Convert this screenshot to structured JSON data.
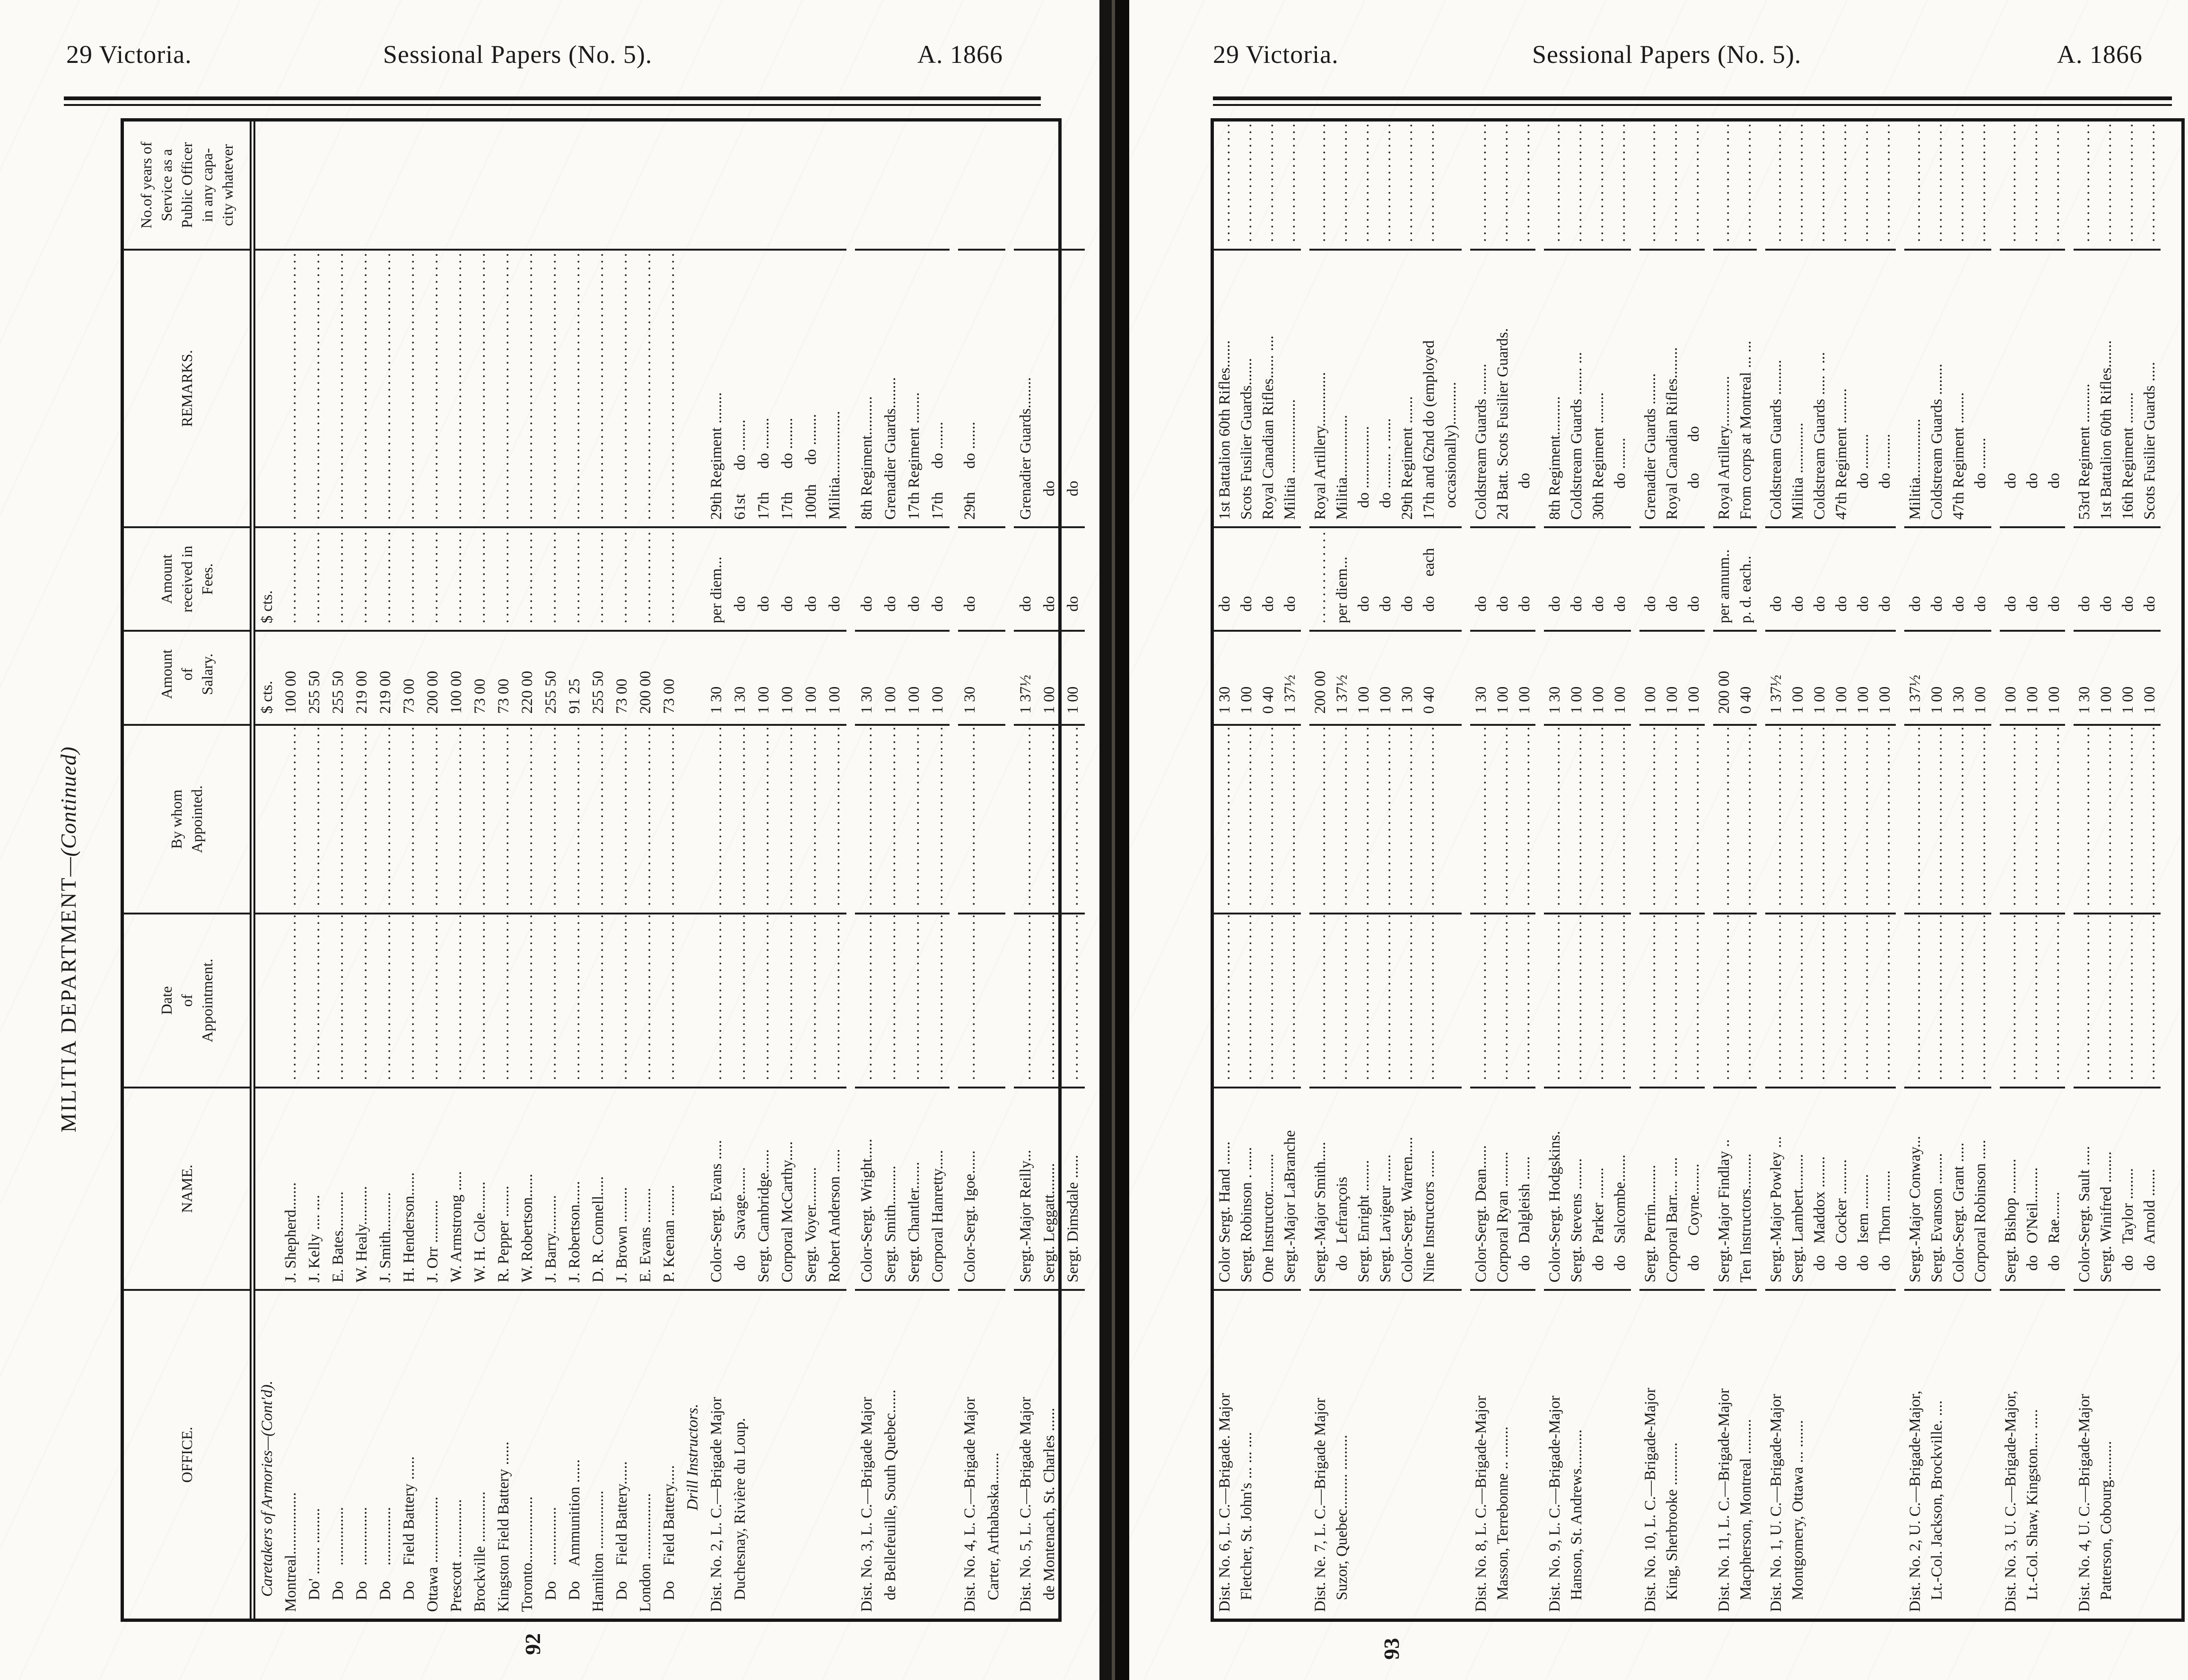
{
  "header": {
    "victoria": "29 Victoria.",
    "title": "Sessional Papers (No. 5).",
    "year": "A. 1866"
  },
  "table_title": {
    "main": "MILITIA DEPARTMENT",
    "cont": "—(Continued)"
  },
  "columns": [
    "OFFICE.",
    "NAME.",
    "Date\nof\nAppointment.",
    "By whom\nAppointed.",
    "Amount\nof\nSalary.",
    "Amount\nreceived in\nFees.",
    "REMARKS.",
    "No.of years of\nService as a\nPublic Officer\nin any capa-\ncity whatever"
  ],
  "currency_header": "$ cts.",
  "left_page": {
    "page_number": "92",
    "rows": [
      {
        "t": "s1",
        "o": "Caretakers of Armories—(Cont'd).",
        "s": "$ cts.",
        "f": "$ cts."
      },
      {
        "o": "Montreal................",
        "n": "J. Shepherd.......",
        "s": "100 00"
      },
      {
        "o": "   Do' ....... .........",
        "n": "J. Kelly .... ....",
        "s": "255 50"
      },
      {
        "o": "   Do    ...............",
        "n": "E. Bates..........",
        "s": "255 50"
      },
      {
        "o": "   Do    ...............",
        "n": "W. Healy..........",
        "s": "219 00"
      },
      {
        "o": "   Do    ...............",
        "n": "J. Smith..........",
        "s": "219 00"
      },
      {
        "o": "   Do    Field Battery ......",
        "n": "H. Henderson......",
        "s": "73 00"
      },
      {
        "o": "Ottawa .................",
        "n": "J. Orr ...........",
        "s": "200 00"
      },
      {
        "o": "Prescott ...............",
        "n": "W. Armstrong .....",
        "s": "100 00"
      },
      {
        "o": "Brockville .............",
        "n": "W. H. Cole........",
        "s": "73 00"
      },
      {
        "o": "Kingston Field Battery ......",
        "n": "R. Pepper ........",
        "s": "73 00"
      },
      {
        "o": "Toronto.................",
        "n": "W. Robertson......",
        "s": "220 00"
      },
      {
        "o": "   Do    ...............",
        "n": "J. Barry..........",
        "s": "255 50"
      },
      {
        "o": "   Do    Ammunition ......",
        "n": "J. Robertson......",
        "s": "91 25"
      },
      {
        "o": "Hamilton ...............",
        "n": "D. R. Connell.....",
        "s": "255 50"
      },
      {
        "o": "   Do    Field Battery......",
        "n": "J. Brown .........",
        "s": "73 00"
      },
      {
        "o": "London .................",
        "n": "E. Evans .........",
        "s": "200 00"
      },
      {
        "o": "   Do    Field Battery.....",
        "n": "P. Keenan ........",
        "s": "73 00"
      },
      {
        "t": "s2",
        "o": "Drill Instructors."
      },
      {
        "o": "Dist. No. 2, L. C.—Brigade Major",
        "n": "Color-Sergt. Evans .....",
        "s": "1 30",
        "f": "per diem...",
        "r": "29th Regiment ........"
      },
      {
        "o": "   Duchesnay, Rivière du Loup.",
        "n": "   do    Savage.......",
        "s": "1 30",
        "f": "   do",
        "r": "61st      do ........"
      },
      {
        "n": "Sergt. Cambridge......",
        "s": "1 00",
        "f": "   do",
        "r": "17th      do ........"
      },
      {
        "n": "Corporal McCarthy.....",
        "s": "1 00",
        "f": "   do",
        "r": "17th      do ........"
      },
      {
        "n": "Sergt. Voyer..........",
        "s": "1 00",
        "f": "   do",
        "r": "100th     do ........"
      },
      {
        "n": "Robert Anderson ......",
        "s": "1 00",
        "f": "   do",
        "r": "Militia................."
      },
      {
        "g": 1,
        "o": "Dist. No. 3, L. C.—Brigade Major",
        "n": "Color-Sergt. Wright.....",
        "s": "1 30",
        "f": "   do",
        "r": "8th Regiment.........."
      },
      {
        "o": "   de Bellefeuille, South Quebec......",
        "n": "Sergt. Smith..........",
        "s": "1 00",
        "f": "   do",
        "r": "Grenadier Guards........"
      },
      {
        "n": "Sergt. Chantler.......",
        "s": "1 00",
        "f": "   do",
        "r": "17th Regiment ........"
      },
      {
        "n": "Corporal Hanretty.....",
        "s": "1 00",
        "f": "   do",
        "r": "17th      do ......."
      },
      {
        "g": 1,
        "o": "Dist. No. 4, L. C.—Brigade Major",
        "n": "Color-Sergt. Igoe......",
        "s": "1 30",
        "f": "   do",
        "r": "29th      do ......."
      },
      {
        "x": 1,
        "o": "   Carter, Arthabaska........"
      },
      {
        "g": 1,
        "o": "Dist. No. 5, L. C.—Brigade Major",
        "n": "Sergt.-Major Reilly...",
        "s": "1 37½",
        "f": "   do",
        "r": "Grenadier Guards........"
      },
      {
        "o": "   de Montenach, St. Charles ......",
        "n": "Sergt. Leggatt........",
        "s": "1 00",
        "f": "   do",
        "r": "      do"
      },
      {
        "n": "Sergt. Dimsdale ......",
        "s": "1 00",
        "f": "   do",
        "r": "      do"
      }
    ]
  },
  "right_page": {
    "page_number": "93",
    "rows": [
      {
        "o": "Dist. No. 6, L. C.—Brigade. Major",
        "n": "Color Sergt. Hand ......",
        "s": "1 30",
        "f": "   do",
        "r": "1st Battalion 60th Rifles......."
      },
      {
        "o": "   Fletcher, St. John's ... ... ....",
        "n": "Sergt. Robinson . ......",
        "s": "1 00",
        "f": "   do",
        "r": "Scots Fusilier Guards......."
      },
      {
        "n": "One Instructor..........",
        "s": "0 40",
        "f": "   do",
        "r": "Royal Canadian Rifles...... ...."
      },
      {
        "n": "Sergt.-Major LaBranche",
        "s": "1 37½",
        "f": "   do",
        "r": "Militia ..................."
      },
      {
        "g": 1,
        "o": "Dist. Ne. 7, L. C.—Brigade Major",
        "n": "Sergt.-Major Smith.....",
        "s": "200 00",
        "r": "Royal Artillery.............."
      },
      {
        "o": "   Suzor, Quebec......... .........",
        "n": "   do   Lefrançois",
        "s": "1 37½",
        "f": "per diem...",
        "r": "Militia................"
      },
      {
        "n": "Sergt. Enright ........",
        "s": "1 00",
        "f": "   do",
        "r": "   do ................"
      },
      {
        "n": "Sergt. Lavigeur .......",
        "s": "1 00",
        "f": "   do",
        "r": "   do ......... . ......"
      },
      {
        "n": "Color-Sergt. Warren.....",
        "s": "1 30",
        "f": "   do",
        "r": "29th Regiment ......."
      },
      {
        "n": "Nine Instructors .......",
        "s": "0 40",
        "f": "   do     each",
        "r": "17th and 62nd do (employed"
      },
      {
        "x": 1,
        "r": "   occasionally)..........."
      },
      {
        "g": 1,
        "o": "Dist. No. 8, L. C.—Brigade-Major",
        "n": "Color-Sergt. Dean......",
        "s": "1 30",
        "f": "   do",
        "r": "Coldstream Guards ........"
      },
      {
        "o": "   Masson, Terrebonne .. ........",
        "n": "Corporal Ryan .........",
        "s": "1 00",
        "f": "   do",
        "r": "2d Batt. Scots Fusilier Guards."
      },
      {
        "n": "   do   Dalgleish ......",
        "s": "1 00",
        "f": "   do",
        "r": "        do"
      },
      {
        "g": 1,
        "o": "Dist. No. 9, L. C.—Brigade-Major",
        "n": "Color-Sergt. Hodgskins.",
        "s": "1 30",
        "f": "   do",
        "r": "8th Regiment.........."
      },
      {
        "o": "   Hanson, St. Andrews..........",
        "n": "Sergt. Stevens ........",
        "s": "1 00",
        "f": "   do",
        "r": "Coldstream Guards ....... ..."
      },
      {
        "n": "   do   Parker ........",
        "s": "1 00",
        "f": "   do",
        "r": "30th Regiment ........"
      },
      {
        "n": "   do   Salcombe.......",
        "s": "1 00",
        "f": "   do",
        "r": "        do ........"
      },
      {
        "g": 1,
        "o": "Dist. No. 10, L. C.—Brigade-Major",
        "n": "Sergt. Perrin..........",
        "s": "1 00",
        "f": "   do",
        "r": "Grenadier Guards ........"
      },
      {
        "o": "   King, Sherbrooke ...........",
        "n": "Corporal Barr.... .....",
        "s": "1 00",
        "f": "   do",
        "r": "Royal Canadian Rifles........"
      },
      {
        "n": "   do     Coyne........",
        "s": "1 00",
        "f": "   do",
        "r": "        do        do"
      },
      {
        "g": 1,
        "o": "Dist. No. 11, L. C.—Brigade-Major",
        "n": "Sergt.-Major Findlay ..",
        "s": "200 00",
        "f": "per annum..",
        "r": "Royal Artillery............."
      },
      {
        "o": "   Macpherson, Montreal .........",
        "n": "Ten Instructors.........",
        "s": "0 40",
        "f": "p. d. each..",
        "r": "From corps at Montreal ... ..."
      },
      {
        "g": 1,
        "o": "Dist. No. 1, U. C.—Brigade-Major",
        "n": "Sergt.-Major Powley ...",
        "s": "1 37½",
        "f": "   do",
        "r": "Coldstream Guards ........."
      },
      {
        "o": "   Montgomery, Ottawa ... .......",
        "n": "Sergt. Lambert.........",
        "s": "1 00",
        "f": "   do",
        "r": "Militia ............."
      },
      {
        "n": "   do   Maddox ........",
        "s": "1 00",
        "f": "   do",
        "r": "Coldstream Guards ..... . ..."
      },
      {
        "n": "   do   Cocker .........",
        "s": "1 00",
        "f": "   do",
        "r": "47th Regiment ........."
      },
      {
        "n": "   do   Isem .........",
        "s": "1 00",
        "f": "   do",
        "r": "        do ........."
      },
      {
        "n": "   do   Thorn ........",
        "s": "1 00",
        "f": "   do",
        "r": "        do ........."
      },
      {
        "g": 1,
        "o": "Dist. No. 2, U. C.—Brigade-Major,",
        "n": "Sergt.-Major Conway...",
        "s": "1 37½",
        "f": "   do",
        "r": "Militia..............."
      },
      {
        "o": "   Lt.-Col. Jackson, Brockville. ....",
        "n": "Sergt. Evanson ........",
        "s": "1 00",
        "f": "   do",
        "r": "Coldstream Guards ........"
      },
      {
        "n": "Color-Sergt. Grant .....",
        "s": "1 30",
        "f": "   do",
        "r": "47th Regiment ........"
      },
      {
        "n": "Corporal Robinson .....",
        "s": "1 00",
        "f": "   do",
        "r": "        do ........"
      },
      {
        "g": 1,
        "o": "Dist. No. 3, U. C.—Brigade-Major,",
        "n": "Sergt. Bishop .........",
        "s": "1 00",
        "f": "   do",
        "r": "        do"
      },
      {
        "o": "   Lt.-Col. Shaw, Kingston.... .....",
        "n": "   do   O'Neil.........",
        "s": "1 00",
        "f": "   do",
        "r": "        do"
      },
      {
        "n": "   do   Rae.......",
        "s": "1 00",
        "f": "   do",
        "r": "        do"
      },
      {
        "g": 1,
        "o": "Dist. No. 4, U. C.—Brigade-Major",
        "n": "Color-Sergt. Sault .....",
        "s": "1 30",
        "f": "   do",
        "r": "53rd Regiment .........."
      },
      {
        "o": "   Patterson, Cobourg..........",
        "n": "Sergt. Winifred ........",
        "s": "1 00",
        "f": "   do",
        "r": "1st Battalion 60th Rifles......."
      },
      {
        "n": "   do   Taylor ........",
        "s": "1 00",
        "f": "   do",
        "r": "16th Regiment ........"
      },
      {
        "n": "   do   Arnold .......",
        "s": "1 00",
        "f": "   do",
        "r": "Scots Fusilier Guards ....."
      }
    ]
  }
}
